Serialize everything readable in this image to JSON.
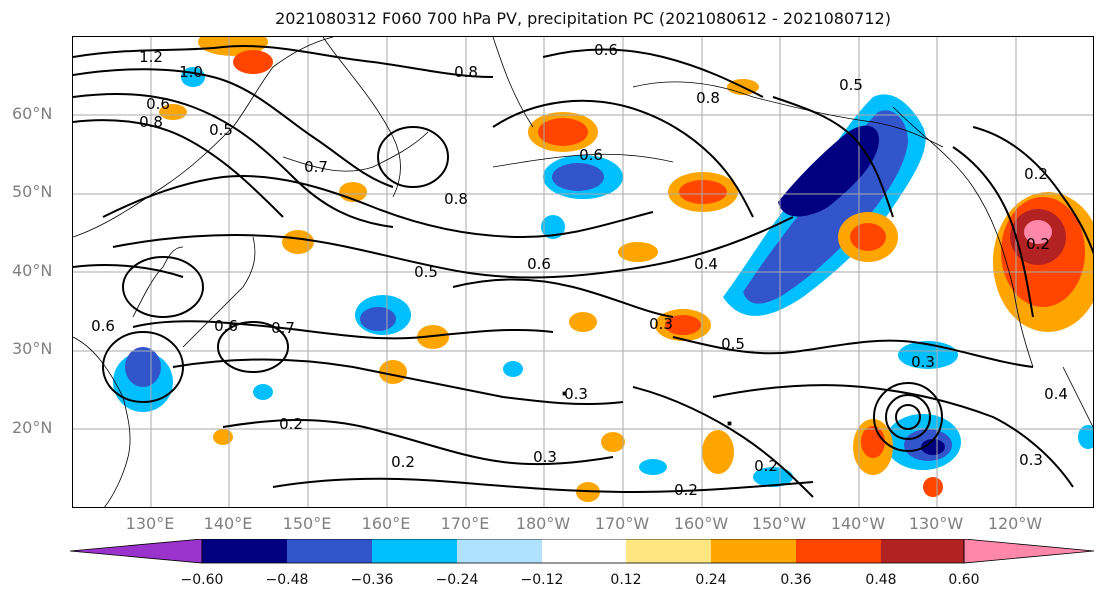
{
  "title": "2021080312 F060 700 hPa PV, precipitation PC (2021080612 - 2021080712)",
  "latitude_labels": [
    "60°N",
    "50°N",
    "40°N",
    "30°N",
    "20°N"
  ],
  "longitude_labels": [
    "130°E",
    "140°E",
    "150°E",
    "160°E",
    "170°E",
    "180°W",
    "170°W",
    "160°W",
    "150°W",
    "140°W",
    "130°W",
    "120°W"
  ],
  "contour_labels": [
    "1.2",
    "1.0",
    "0.6",
    "0.8",
    "0.5",
    "0.7",
    "0.6",
    "0.8",
    "0.8",
    "0.5",
    "0.6",
    "0.4",
    "0.3",
    "0.5",
    "0.3",
    "0.3",
    "0.2",
    "0.2",
    "0.2",
    "0.2",
    "0.6",
    "0.6",
    "0.7",
    "0.2",
    "0.2",
    "0.3",
    "0.4",
    "0.3",
    "0.8",
    "0.5",
    "0.6"
  ],
  "colorbar": {
    "ticks": [
      "−0.60",
      "−0.48",
      "−0.36",
      "−0.24",
      "−0.12",
      "0.12",
      "0.24",
      "0.36",
      "0.48",
      "0.60"
    ],
    "colors": [
      "#9933cc",
      "#000080",
      "#3355cc",
      "#00bfff",
      "#b0e2ff",
      "#ffffff",
      "#ffe680",
      "#ffa500",
      "#ff4500",
      "#b22222",
      "#ff88aa"
    ]
  },
  "precip_colors": {
    "dark_blue": "#000080",
    "blue": "#3355cc",
    "light_blue": "#00bfff",
    "orange": "#ffa500",
    "red_orange": "#ff4500",
    "dark_red": "#b22222",
    "pink": "#ff88aa"
  }
}
